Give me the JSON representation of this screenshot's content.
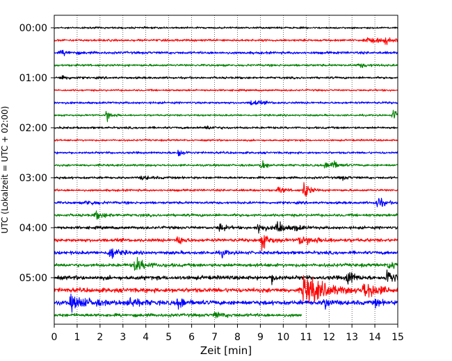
{
  "chart_data": {
    "type": "line",
    "title": "",
    "xlabel": "Zeit  [min]",
    "ylabel": "UTC (Lokalzeit = UTC + 02:00)",
    "xlim": [
      0,
      15
    ],
    "x_ticks": [
      0,
      1,
      2,
      3,
      4,
      5,
      6,
      7,
      8,
      9,
      10,
      11,
      12,
      13,
      14,
      15
    ],
    "y_tick_labels": [
      "00:00",
      "01:00",
      "02:00",
      "03:00",
      "04:00",
      "05:00"
    ],
    "grid": "vertical dotted",
    "row_minutes": 15,
    "color_cycle": [
      "#000000",
      "#ff0000",
      "#0000ff",
      "#008000"
    ],
    "traces": [
      {
        "start": "00:00",
        "noise": 1.0,
        "events": []
      },
      {
        "start": "00:15",
        "noise": 1.2,
        "events": [
          {
            "t": 13.5,
            "amp": 2.5,
            "dur": 1.2
          },
          {
            "t": 14.4,
            "amp": 4,
            "dur": 0.4
          }
        ]
      },
      {
        "start": "00:30",
        "noise": 1.4,
        "events": [
          {
            "t": 0.3,
            "amp": 2.5,
            "dur": 0.6
          }
        ]
      },
      {
        "start": "00:45",
        "noise": 1.2,
        "events": [
          {
            "t": 13.3,
            "amp": 2.5,
            "dur": 0.5
          }
        ]
      },
      {
        "start": "01:00",
        "noise": 1.2,
        "events": [
          {
            "t": 0.3,
            "amp": 3,
            "dur": 0.4
          }
        ]
      },
      {
        "start": "01:15",
        "noise": 1.0,
        "events": []
      },
      {
        "start": "01:30",
        "noise": 1.2,
        "events": [
          {
            "t": 8.6,
            "amp": 3.5,
            "dur": 0.5
          }
        ]
      },
      {
        "start": "01:45",
        "noise": 1.0,
        "events": [
          {
            "t": 2.25,
            "amp": 8,
            "dur": 0.3
          },
          {
            "t": 14.8,
            "amp": 6,
            "dur": 0.3
          }
        ]
      },
      {
        "start": "02:00",
        "noise": 1.2,
        "events": [
          {
            "t": 6.6,
            "amp": 1.8,
            "dur": 0.6
          }
        ]
      },
      {
        "start": "02:15",
        "noise": 1.0,
        "events": []
      },
      {
        "start": "02:30",
        "noise": 1.2,
        "events": [
          {
            "t": 5.4,
            "amp": 6,
            "dur": 0.3
          }
        ]
      },
      {
        "start": "02:45",
        "noise": 1.2,
        "events": [
          {
            "t": 9.05,
            "amp": 6,
            "dur": 0.3
          },
          {
            "t": 11.8,
            "amp": 3,
            "dur": 0.5
          },
          {
            "t": 12.1,
            "amp": 6,
            "dur": 0.3
          }
        ]
      },
      {
        "start": "03:00",
        "noise": 1.3,
        "events": [
          {
            "t": 3.8,
            "amp": 2,
            "dur": 0.5
          },
          {
            "t": 12.5,
            "amp": 2,
            "dur": 0.4
          }
        ]
      },
      {
        "start": "03:15",
        "noise": 1.2,
        "events": [
          {
            "t": 9.8,
            "amp": 5,
            "dur": 0.3
          },
          {
            "t": 10.9,
            "amp": 12,
            "dur": 0.3
          }
        ]
      },
      {
        "start": "03:30",
        "noise": 1.4,
        "events": [
          {
            "t": 1.4,
            "amp": 3,
            "dur": 0.5
          },
          {
            "t": 14.1,
            "amp": 9,
            "dur": 0.3
          }
        ]
      },
      {
        "start": "03:45",
        "noise": 1.5,
        "events": [
          {
            "t": 1.8,
            "amp": 4,
            "dur": 0.5
          }
        ]
      },
      {
        "start": "04:00",
        "noise": 1.6,
        "events": [
          {
            "t": 7.2,
            "amp": 6,
            "dur": 0.3
          },
          {
            "t": 8.9,
            "amp": 8,
            "dur": 0.3
          },
          {
            "t": 9.7,
            "amp": 10,
            "dur": 0.4
          },
          {
            "t": 10.5,
            "amp": 3,
            "dur": 0.4
          }
        ]
      },
      {
        "start": "04:15",
        "noise": 1.8,
        "events": [
          {
            "t": 5.4,
            "amp": 6,
            "dur": 0.3
          },
          {
            "t": 9.05,
            "amp": 10,
            "dur": 0.4
          },
          {
            "t": 10.7,
            "amp": 5,
            "dur": 1.0
          }
        ]
      },
      {
        "start": "04:30",
        "noise": 1.8,
        "events": [
          {
            "t": 2.4,
            "amp": 9,
            "dur": 0.4
          },
          {
            "t": 7.3,
            "amp": 4,
            "dur": 0.3
          }
        ]
      },
      {
        "start": "04:45",
        "noise": 1.9,
        "events": [
          {
            "t": 3.5,
            "amp": 8,
            "dur": 0.6
          },
          {
            "t": 14.6,
            "amp": 4,
            "dur": 0.8
          }
        ]
      },
      {
        "start": "05:00",
        "noise": 2.2,
        "events": [
          {
            "t": 12.8,
            "amp": 12,
            "dur": 0.3
          },
          {
            "t": 14.5,
            "amp": 10,
            "dur": 0.5
          },
          {
            "t": 9.5,
            "amp": 5,
            "dur": 0.3
          }
        ]
      },
      {
        "start": "05:15",
        "noise": 2.4,
        "events": [
          {
            "t": 10.85,
            "amp": 16,
            "dur": 1.2
          },
          {
            "t": 13.5,
            "amp": 10,
            "dur": 0.8
          },
          {
            "t": 11.2,
            "amp": 5,
            "dur": 0.6
          }
        ]
      },
      {
        "start": "05:30",
        "noise": 2.4,
        "events": [
          {
            "t": 0.7,
            "amp": 7,
            "dur": 1.2
          },
          {
            "t": 3.2,
            "amp": 6,
            "dur": 0.6
          },
          {
            "t": 5.4,
            "amp": 7,
            "dur": 0.4
          },
          {
            "t": 11.8,
            "amp": 8,
            "dur": 0.3
          },
          {
            "t": 14.0,
            "amp": 4,
            "dur": 0.3
          }
        ]
      },
      {
        "start": "05:45",
        "noise": 1.8,
        "end_minute": 10.8,
        "events": [
          {
            "t": 7.0,
            "amp": 3,
            "dur": 0.5
          }
        ]
      }
    ]
  }
}
